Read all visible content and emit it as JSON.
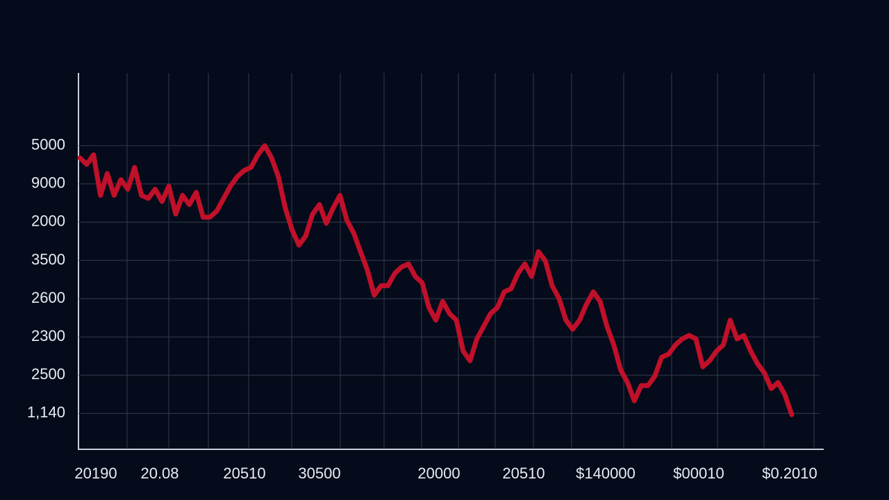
{
  "chart_data": {
    "type": "line",
    "y_labels": [
      "5000",
      "9000",
      "2000",
      "3500",
      "2600",
      "2300",
      "2500",
      "1,140"
    ],
    "x_labels": [
      "20190",
      "20.08",
      "20510",
      "30500",
      "20000",
      "20510",
      "$140000",
      "$00010",
      "$0.2010"
    ],
    "series": [
      {
        "color": "#c0102a",
        "values": [
          6.68,
          6.51,
          6.76,
          5.7,
          6.27,
          5.7,
          6.11,
          5.86,
          6.43,
          5.7,
          5.62,
          5.86,
          5.54,
          5.94,
          5.21,
          5.7,
          5.46,
          5.78,
          5.13,
          5.13,
          5.29,
          5.62,
          5.94,
          6.19,
          6.35,
          6.43,
          6.76,
          7.0,
          6.68,
          6.19,
          5.37,
          4.8,
          4.4,
          4.64,
          5.21,
          5.46,
          4.97,
          5.37,
          5.7,
          5.05,
          4.72,
          4.23,
          3.75,
          3.09,
          3.34,
          3.34,
          3.66,
          3.83,
          3.91,
          3.58,
          3.42,
          2.77,
          2.44,
          2.93,
          2.61,
          2.44,
          1.63,
          1.38,
          1.95,
          2.28,
          2.61,
          2.77,
          3.18,
          3.26,
          3.66,
          3.91,
          3.58,
          4.23,
          3.99,
          3.34,
          3.01,
          2.44,
          2.2,
          2.44,
          2.85,
          3.18,
          2.93,
          2.28,
          1.79,
          1.14,
          0.81,
          0.33,
          0.73,
          0.73,
          0.98,
          1.47,
          1.55,
          1.79,
          1.95,
          2.04,
          1.95,
          1.22,
          1.38,
          1.63,
          1.79,
          2.44,
          1.95,
          2.04,
          1.63,
          1.3,
          1.06,
          0.65,
          0.81,
          0.49,
          -0.03
        ]
      }
    ],
    "ylim": [
      -0.9,
      8.9
    ]
  }
}
